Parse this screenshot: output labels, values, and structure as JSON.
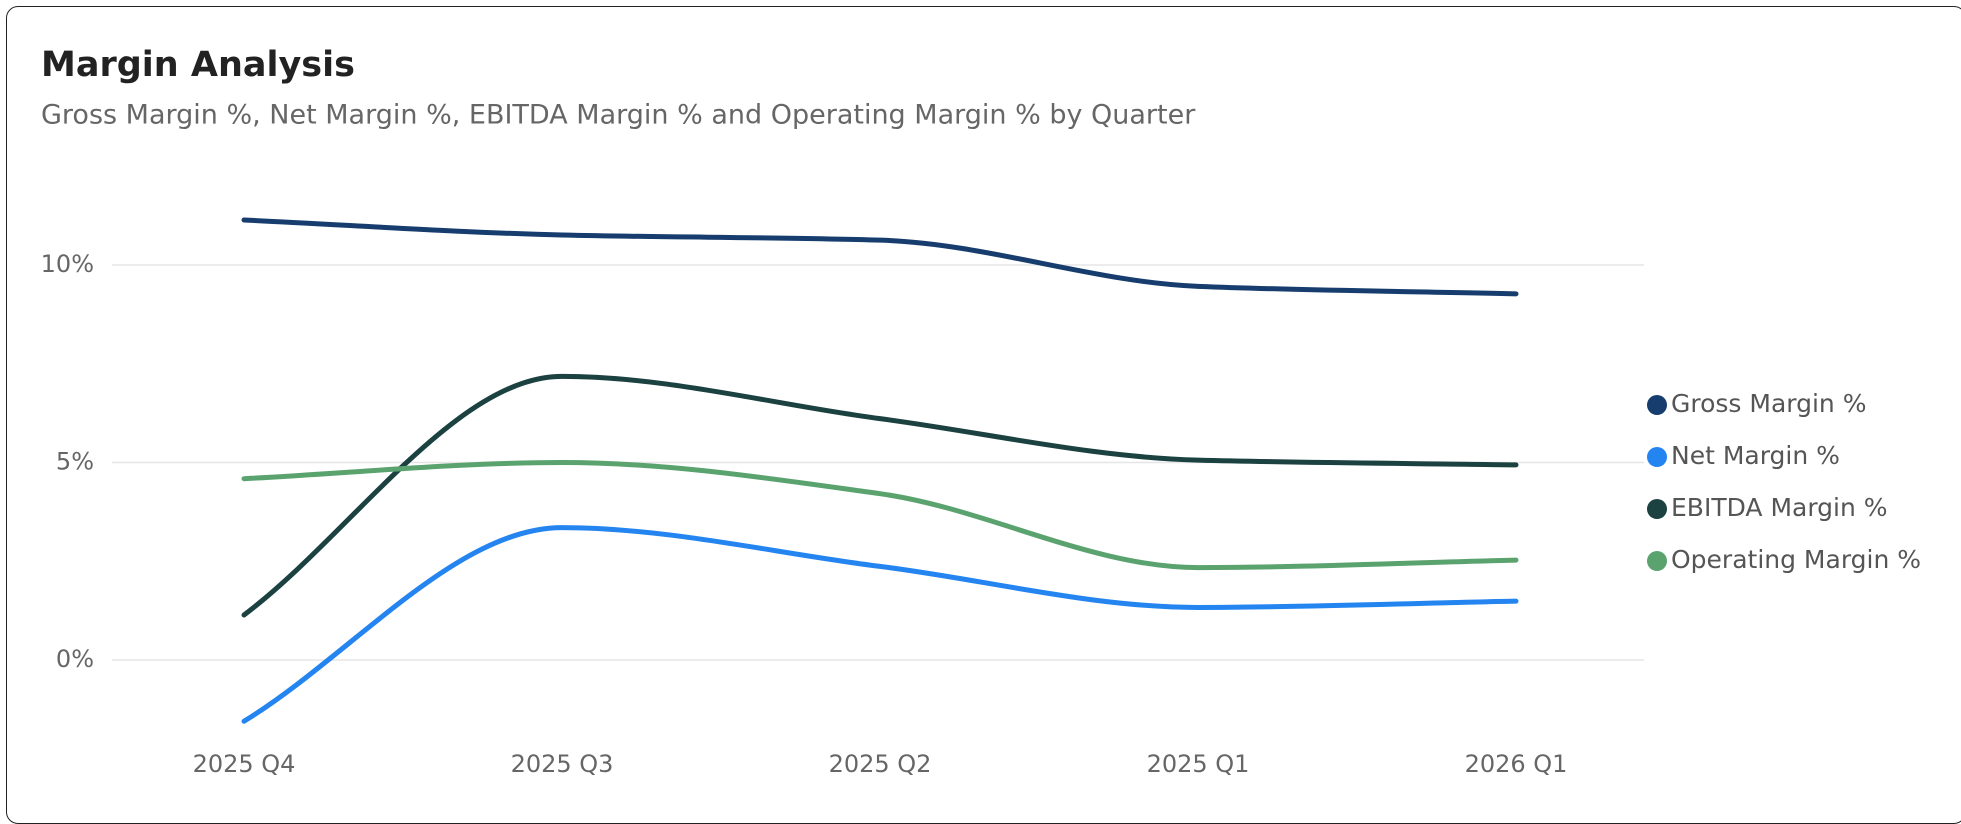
{
  "chart_data": {
    "type": "line",
    "title": "Margin Analysis",
    "subtitle": "Gross Margin %, Net Margin %, EBITDA Margin % and Operating Margin % by Quarter",
    "categories": [
      "2025 Q4",
      "2025 Q3",
      "2025 Q2",
      "2025 Q1",
      "2026 Q1"
    ],
    "series": [
      {
        "name": "Gross Margin %",
        "color": "#163d6e",
        "values": [
          11.14,
          10.76,
          10.63,
          9.46,
          9.27
        ]
      },
      {
        "name": "Net Margin %",
        "color": "#2484f0",
        "values": [
          -1.55,
          3.35,
          2.37,
          1.33,
          1.49
        ]
      },
      {
        "name": "EBITDA Margin %",
        "color": "#1b4140",
        "values": [
          1.14,
          7.18,
          6.11,
          5.06,
          4.94
        ]
      },
      {
        "name": "Operating Margin %",
        "color": "#5aa36f",
        "values": [
          4.59,
          5.0,
          4.21,
          2.34,
          2.53
        ]
      }
    ],
    "ylim": [
      -2,
      12
    ],
    "yticks": [
      {
        "value": 0,
        "label": "0%"
      },
      {
        "value": 5,
        "label": "5%"
      },
      {
        "value": 10,
        "label": "10%"
      }
    ],
    "grid": true,
    "legend": "right"
  }
}
